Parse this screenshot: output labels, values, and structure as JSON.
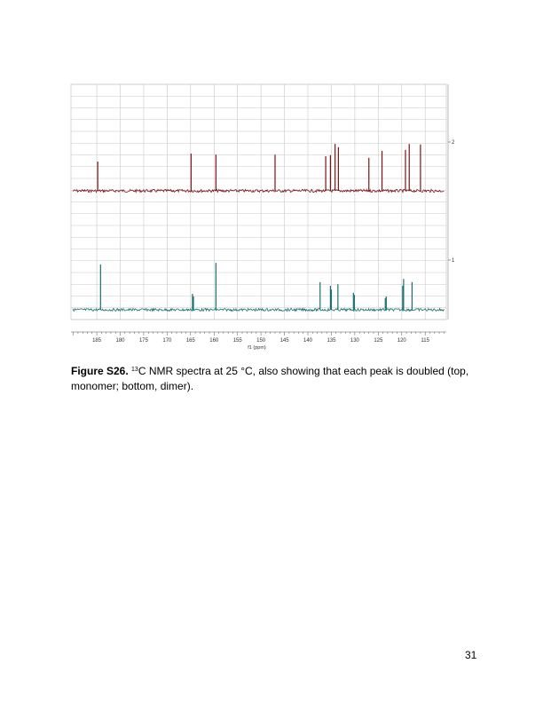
{
  "figure": {
    "label": "Figure S26.",
    "caption_prefix": "C NMR spectra at 25 °C, also showing that each peak is doubled (top, monomer; bottom, dimer).",
    "isotope": "13"
  },
  "page_number": "31",
  "chart_data": {
    "type": "line",
    "title": "",
    "xlabel": "f1 (ppm)",
    "ylabel": "",
    "xlim": [
      190.5,
      110.5
    ],
    "x_reversed": true,
    "grid": true,
    "x_ticks": [
      185,
      180,
      175,
      170,
      165,
      160,
      155,
      150,
      145,
      140,
      135,
      130,
      125,
      120,
      115
    ],
    "x_tick_labels": [
      "185",
      "180",
      "175",
      "170",
      "165",
      "160",
      "155",
      "150",
      "145",
      "140",
      "135",
      "130",
      "125",
      "120",
      "115"
    ],
    "trace_labels": [
      "2",
      "1"
    ],
    "colors": {
      "top": "#7a1414",
      "bottom": "#1a7070",
      "grid": "#c8c8c8"
    },
    "series": [
      {
        "trace": "2",
        "peaks_ppm": [
          184.8,
          164.9,
          159.6,
          147.0,
          136.2,
          135.2,
          134.2,
          133.5,
          127.0,
          124.2,
          119.2,
          118.4,
          116.0
        ],
        "peak_heights": [
          0.55,
          0.7,
          0.68,
          0.68,
          0.65,
          0.67,
          0.88,
          0.82,
          0.62,
          0.75,
          0.77,
          0.88,
          0.87
        ]
      },
      {
        "trace": "1",
        "peaks_ppm": [
          184.2,
          164.6,
          164.4,
          159.6,
          137.4,
          135.2,
          135.0,
          133.6,
          130.3,
          130.1,
          123.5,
          123.3,
          119.8,
          119.6,
          117.8
        ],
        "peak_heights": [
          0.85,
          0.3,
          0.25,
          0.88,
          0.52,
          0.45,
          0.38,
          0.48,
          0.32,
          0.28,
          0.22,
          0.25,
          0.45,
          0.58,
          0.52
        ]
      }
    ]
  }
}
